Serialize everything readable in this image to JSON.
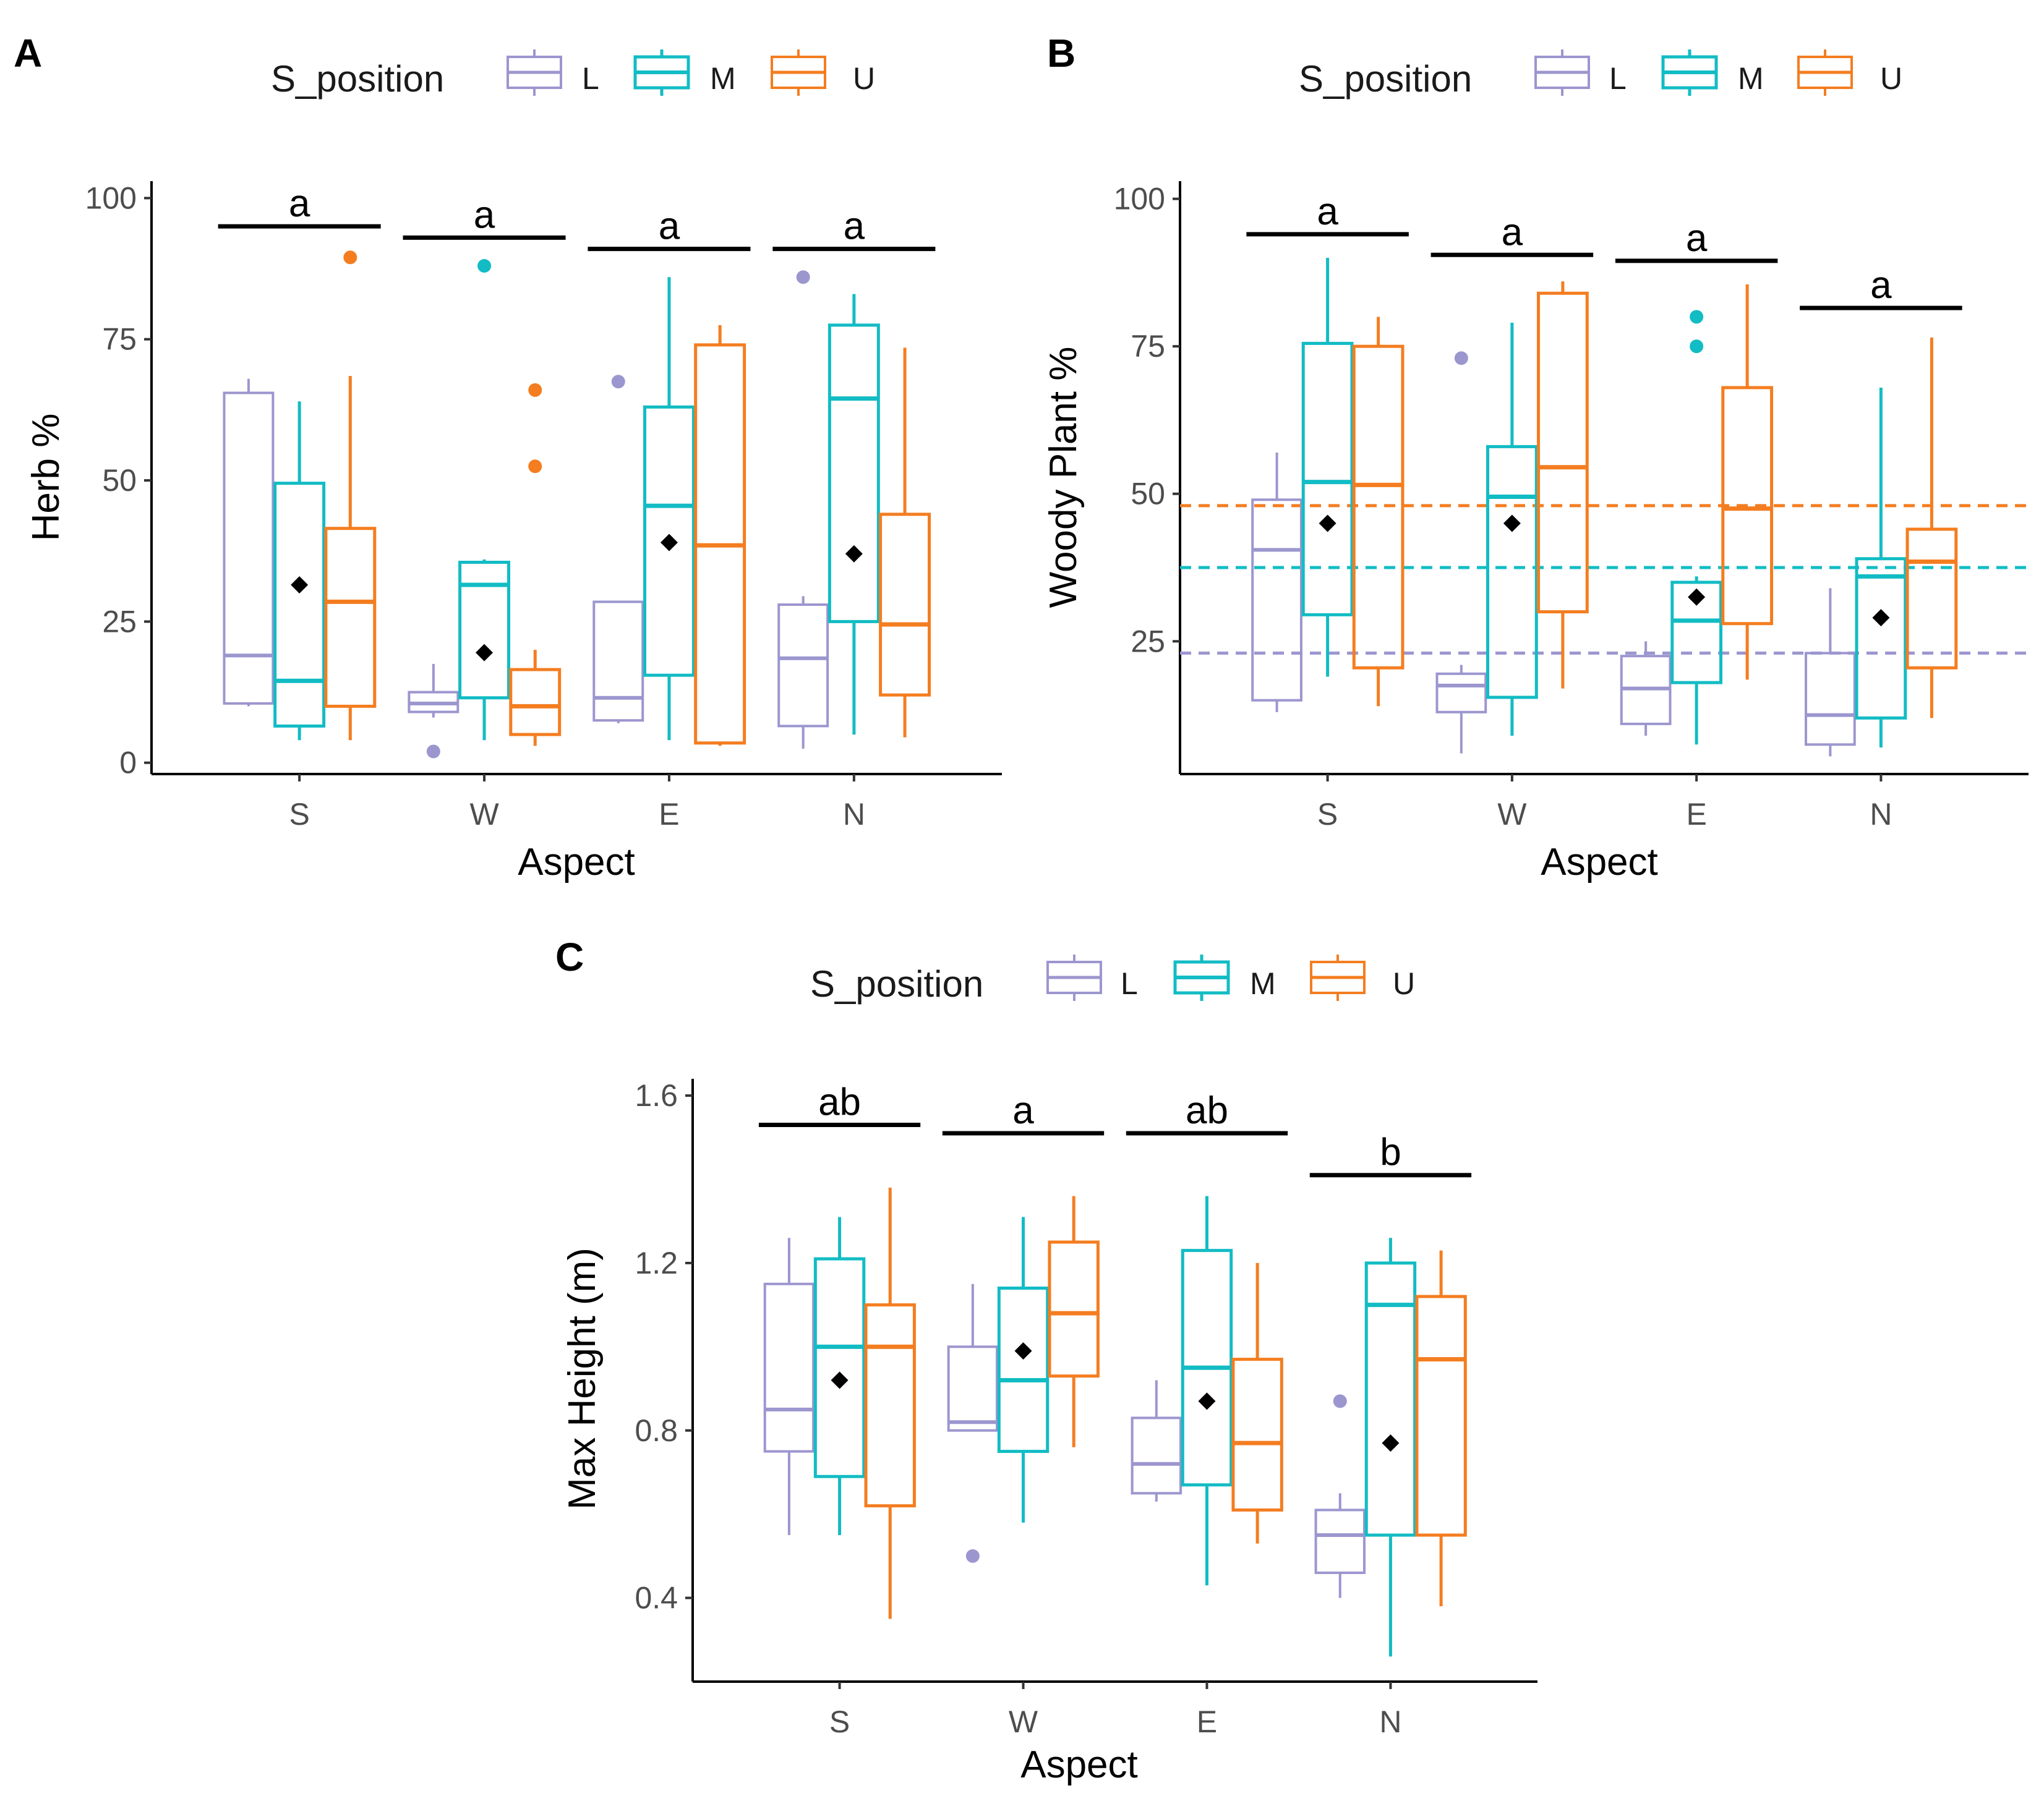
{
  "figure": {
    "legend_title": "S_position",
    "groups": [
      "L",
      "M",
      "U"
    ],
    "colors": {
      "L": "#9c96cf",
      "M": "#12bcc4",
      "U": "#f47d20",
      "mean": "#000000",
      "sig": "#000000",
      "axis": "#000000"
    }
  },
  "chart_data": [
    {
      "id": "A",
      "panel_label": "A",
      "type": "boxplot",
      "xlabel": "Aspect",
      "ylabel": "Herb %",
      "categories": [
        "S",
        "W",
        "E",
        "N"
      ],
      "yticks": [
        "0",
        "25",
        "50",
        "75",
        "100"
      ],
      "ylim": [
        -2,
        103
      ],
      "letters": [
        {
          "label": "a",
          "y": 95
        },
        {
          "label": "a",
          "y": 93
        },
        {
          "label": "a",
          "y": 91
        },
        {
          "label": "a",
          "y": 91
        }
      ],
      "boxes": [
        {
          "cat": "S",
          "group": "L",
          "min": 10,
          "q1": 10.5,
          "median": 19,
          "q3": 65.5,
          "max": 68,
          "outliers": []
        },
        {
          "cat": "S",
          "group": "M",
          "min": 4,
          "q1": 6.5,
          "median": 14.5,
          "q3": 49.5,
          "max": 64,
          "outliers": []
        },
        {
          "cat": "S",
          "group": "U",
          "min": 4,
          "q1": 10,
          "median": 28.5,
          "q3": 41.5,
          "max": 68.5,
          "outliers": [
            89.5
          ]
        },
        {
          "cat": "W",
          "group": "L",
          "min": 8,
          "q1": 9,
          "median": 10.5,
          "q3": 12.5,
          "max": 17.5,
          "outliers": [
            2
          ]
        },
        {
          "cat": "W",
          "group": "M",
          "min": 4,
          "q1": 11.5,
          "median": 31.5,
          "q3": 35.5,
          "max": 36,
          "outliers": [
            88
          ]
        },
        {
          "cat": "W",
          "group": "U",
          "min": 3,
          "q1": 5,
          "median": 10,
          "q3": 16.5,
          "max": 20,
          "outliers": [
            52.5,
            66
          ]
        },
        {
          "cat": "E",
          "group": "L",
          "min": 7,
          "q1": 7.5,
          "median": 11.5,
          "q3": 28.5,
          "max": 28.5,
          "outliers": [
            67.5
          ]
        },
        {
          "cat": "E",
          "group": "M",
          "min": 4,
          "q1": 15.5,
          "median": 45.5,
          "q3": 63,
          "max": 86,
          "outliers": []
        },
        {
          "cat": "E",
          "group": "U",
          "min": 3,
          "q1": 3.5,
          "median": 38.5,
          "q3": 74,
          "max": 77.5,
          "outliers": []
        },
        {
          "cat": "N",
          "group": "L",
          "min": 2.5,
          "q1": 6.5,
          "median": 18.5,
          "q3": 28,
          "max": 29.5,
          "outliers": [
            86
          ]
        },
        {
          "cat": "N",
          "group": "M",
          "min": 5,
          "q1": 25,
          "median": 64.5,
          "q3": 77.5,
          "max": 83,
          "outliers": []
        },
        {
          "cat": "N",
          "group": "U",
          "min": 4.5,
          "q1": 12,
          "median": 24.5,
          "q3": 44,
          "max": 73.5,
          "outliers": []
        }
      ],
      "means": [
        {
          "cat": "S",
          "value": 31.5
        },
        {
          "cat": "W",
          "value": 19.5
        },
        {
          "cat": "E",
          "value": 39
        },
        {
          "cat": "N",
          "value": 37
        }
      ],
      "hlines": []
    },
    {
      "id": "B",
      "panel_label": "B",
      "type": "boxplot",
      "xlabel": "Aspect",
      "ylabel": "Woody Plant %",
      "categories": [
        "S",
        "W",
        "E",
        "N"
      ],
      "yticks": [
        "25",
        "50",
        "75",
        "100"
      ],
      "ylim": [
        2.5,
        103
      ],
      "letters": [
        {
          "label": "a",
          "y": 94
        },
        {
          "label": "a",
          "y": 90.5
        },
        {
          "label": "a",
          "y": 89.5
        },
        {
          "label": "a",
          "y": 81.5
        }
      ],
      "boxes": [
        {
          "cat": "S",
          "group": "L",
          "min": 13,
          "q1": 15,
          "median": 40.5,
          "q3": 49,
          "max": 57,
          "outliers": []
        },
        {
          "cat": "S",
          "group": "M",
          "min": 19,
          "q1": 29.5,
          "median": 52,
          "q3": 75.5,
          "max": 90,
          "outliers": []
        },
        {
          "cat": "S",
          "group": "U",
          "min": 14,
          "q1": 20.5,
          "median": 51.5,
          "q3": 75,
          "max": 80,
          "outliers": []
        },
        {
          "cat": "W",
          "group": "L",
          "min": 6,
          "q1": 13,
          "median": 17.5,
          "q3": 19.5,
          "max": 21,
          "outliers": [
            73
          ]
        },
        {
          "cat": "W",
          "group": "M",
          "min": 9,
          "q1": 15.5,
          "median": 49.5,
          "q3": 58,
          "max": 79,
          "outliers": []
        },
        {
          "cat": "W",
          "group": "U",
          "min": 17,
          "q1": 30,
          "median": 54.5,
          "q3": 84,
          "max": 86,
          "outliers": []
        },
        {
          "cat": "E",
          "group": "L",
          "min": 9,
          "q1": 11,
          "median": 17,
          "q3": 22.5,
          "max": 25,
          "outliers": []
        },
        {
          "cat": "E",
          "group": "M",
          "min": 7.5,
          "q1": 18,
          "median": 28.5,
          "q3": 35,
          "max": 36,
          "outliers": [
            75,
            80
          ]
        },
        {
          "cat": "E",
          "group": "U",
          "min": 18.5,
          "q1": 28,
          "median": 47.5,
          "q3": 68,
          "max": 85.5,
          "outliers": []
        },
        {
          "cat": "N",
          "group": "L",
          "min": 5.5,
          "q1": 7.5,
          "median": 12.5,
          "q3": 23,
          "max": 34,
          "outliers": []
        },
        {
          "cat": "N",
          "group": "M",
          "min": 7,
          "q1": 12,
          "median": 36,
          "q3": 39,
          "max": 68,
          "outliers": []
        },
        {
          "cat": "N",
          "group": "U",
          "min": 12,
          "q1": 20.5,
          "median": 38.5,
          "q3": 44,
          "max": 76.5,
          "outliers": []
        }
      ],
      "means": [
        {
          "cat": "S",
          "value": 45
        },
        {
          "cat": "W",
          "value": 45
        },
        {
          "cat": "E",
          "value": 32.5
        },
        {
          "cat": "N",
          "value": 29
        }
      ],
      "hlines": [
        {
          "group": "U",
          "value": 48
        },
        {
          "group": "M",
          "value": 37.5
        },
        {
          "group": "L",
          "value": 23
        }
      ]
    },
    {
      "id": "C",
      "panel_label": "C",
      "type": "boxplot",
      "xlabel": "Aspect",
      "ylabel": "Max Height (m)",
      "categories": [
        "S",
        "W",
        "E",
        "N"
      ],
      "yticks": [
        "0.4",
        "0.8",
        "1.2",
        "1.6"
      ],
      "ylim": [
        0.2,
        1.64
      ],
      "letters": [
        {
          "label": "ab",
          "y": 1.53
        },
        {
          "label": "a",
          "y": 1.51
        },
        {
          "label": "ab",
          "y": 1.51
        },
        {
          "label": "b",
          "y": 1.41
        }
      ],
      "boxes": [
        {
          "cat": "S",
          "group": "L",
          "min": 0.55,
          "q1": 0.75,
          "median": 0.85,
          "q3": 1.15,
          "max": 1.26,
          "outliers": []
        },
        {
          "cat": "S",
          "group": "M",
          "min": 0.55,
          "q1": 0.69,
          "median": 1.0,
          "q3": 1.21,
          "max": 1.31,
          "outliers": []
        },
        {
          "cat": "S",
          "group": "U",
          "min": 0.35,
          "q1": 0.62,
          "median": 1.0,
          "q3": 1.1,
          "max": 1.38,
          "outliers": []
        },
        {
          "cat": "W",
          "group": "L",
          "min": 0.8,
          "q1": 0.8,
          "median": 0.82,
          "q3": 1.0,
          "max": 1.15,
          "outliers": [
            0.5
          ]
        },
        {
          "cat": "W",
          "group": "M",
          "min": 0.58,
          "q1": 0.75,
          "median": 0.92,
          "q3": 1.14,
          "max": 1.31,
          "outliers": []
        },
        {
          "cat": "W",
          "group": "U",
          "min": 0.76,
          "q1": 0.93,
          "median": 1.08,
          "q3": 1.25,
          "max": 1.36,
          "outliers": []
        },
        {
          "cat": "E",
          "group": "L",
          "min": 0.63,
          "q1": 0.65,
          "median": 0.72,
          "q3": 0.83,
          "max": 0.92,
          "outliers": []
        },
        {
          "cat": "E",
          "group": "M",
          "min": 0.43,
          "q1": 0.67,
          "median": 0.95,
          "q3": 1.23,
          "max": 1.36,
          "outliers": []
        },
        {
          "cat": "E",
          "group": "U",
          "min": 0.53,
          "q1": 0.61,
          "median": 0.77,
          "q3": 0.97,
          "max": 1.2,
          "outliers": []
        },
        {
          "cat": "N",
          "group": "L",
          "min": 0.4,
          "q1": 0.46,
          "median": 0.55,
          "q3": 0.61,
          "max": 0.65,
          "outliers": [
            0.87
          ]
        },
        {
          "cat": "N",
          "group": "M",
          "min": 0.26,
          "q1": 0.55,
          "median": 1.1,
          "q3": 1.2,
          "max": 1.26,
          "outliers": []
        },
        {
          "cat": "N",
          "group": "U",
          "min": 0.38,
          "q1": 0.55,
          "median": 0.97,
          "q3": 1.12,
          "max": 1.23,
          "outliers": []
        }
      ],
      "means": [
        {
          "cat": "S",
          "value": 0.92
        },
        {
          "cat": "W",
          "value": 0.99
        },
        {
          "cat": "E",
          "value": 0.87
        },
        {
          "cat": "N",
          "value": 0.77
        }
      ],
      "hlines": []
    }
  ]
}
